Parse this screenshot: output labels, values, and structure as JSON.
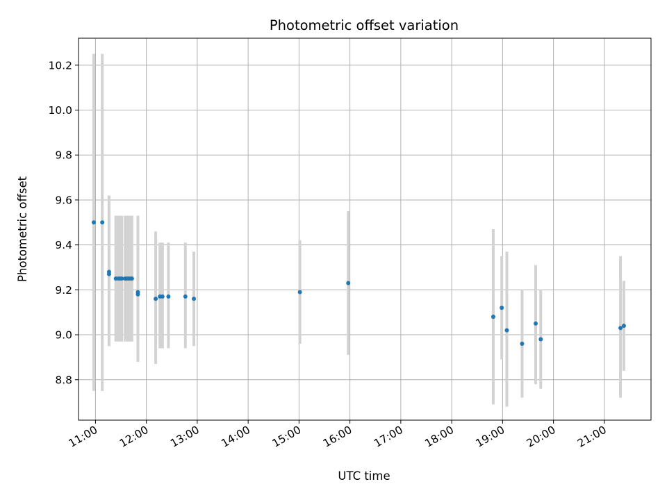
{
  "chart_data": {
    "type": "scatter",
    "title": "Photometric offset variation",
    "xlabel": "UTC time",
    "ylabel": "Photometric offset",
    "x_axis_type": "time",
    "x_range": [
      "10:40",
      "21:55"
    ],
    "ylim": [
      8.62,
      10.32
    ],
    "x_ticks": [
      "11:00",
      "12:00",
      "13:00",
      "14:00",
      "15:00",
      "16:00",
      "17:00",
      "18:00",
      "19:00",
      "20:00",
      "21:00"
    ],
    "y_ticks": [
      8.8,
      9.0,
      9.2,
      9.4,
      9.6,
      9.8,
      10.0,
      10.2
    ],
    "y_tick_labels": [
      "8.8",
      "9.0",
      "9.2",
      "9.4",
      "9.6",
      "9.8",
      "10.0",
      "10.2"
    ],
    "grid": true,
    "legend": "none",
    "point_color": "#1f77b4",
    "errorbar_color": "#d3d3d3",
    "points": [
      {
        "t": "10:58",
        "y": 9.5,
        "lo": 8.75,
        "hi": 10.25
      },
      {
        "t": "11:08",
        "y": 9.5,
        "lo": 8.75,
        "hi": 10.25
      },
      {
        "t": "11:16",
        "y": 9.28,
        "lo": 8.95,
        "hi": 9.62
      },
      {
        "t": "11:16",
        "y": 9.27,
        "lo": 8.95,
        "hi": 9.62
      },
      {
        "t": "11:24",
        "y": 9.25,
        "lo": 8.97,
        "hi": 9.53
      },
      {
        "t": "11:27",
        "y": 9.25,
        "lo": 8.97,
        "hi": 9.53
      },
      {
        "t": "11:29",
        "y": 9.25,
        "lo": 8.97,
        "hi": 9.53
      },
      {
        "t": "11:31",
        "y": 9.25,
        "lo": 8.97,
        "hi": 9.53
      },
      {
        "t": "11:35",
        "y": 9.25,
        "lo": 8.97,
        "hi": 9.53
      },
      {
        "t": "11:37",
        "y": 9.25,
        "lo": 8.97,
        "hi": 9.53
      },
      {
        "t": "11:39",
        "y": 9.25,
        "lo": 8.97,
        "hi": 9.53
      },
      {
        "t": "11:41",
        "y": 9.25,
        "lo": 8.97,
        "hi": 9.53
      },
      {
        "t": "11:43",
        "y": 9.25,
        "lo": 8.97,
        "hi": 9.53
      },
      {
        "t": "11:50",
        "y": 9.19,
        "lo": 8.88,
        "hi": 9.53
      },
      {
        "t": "11:50",
        "y": 9.18,
        "lo": 8.88,
        "hi": 9.53
      },
      {
        "t": "12:11",
        "y": 9.16,
        "lo": 8.87,
        "hi": 9.46
      },
      {
        "t": "12:16",
        "y": 9.17,
        "lo": 8.94,
        "hi": 9.41
      },
      {
        "t": "12:19",
        "y": 9.17,
        "lo": 8.94,
        "hi": 9.41
      },
      {
        "t": "12:26",
        "y": 9.17,
        "lo": 8.94,
        "hi": 9.41
      },
      {
        "t": "12:46",
        "y": 9.17,
        "lo": 8.94,
        "hi": 9.41
      },
      {
        "t": "12:56",
        "y": 9.16,
        "lo": 8.95,
        "hi": 9.37
      },
      {
        "t": "15:01",
        "y": 9.19,
        "lo": 8.96,
        "hi": 9.42
      },
      {
        "t": "15:58",
        "y": 9.23,
        "lo": 8.91,
        "hi": 9.55
      },
      {
        "t": "18:49",
        "y": 9.08,
        "lo": 8.69,
        "hi": 9.47
      },
      {
        "t": "18:59",
        "y": 9.12,
        "lo": 8.89,
        "hi": 9.35
      },
      {
        "t": "19:05",
        "y": 9.02,
        "lo": 8.68,
        "hi": 9.37
      },
      {
        "t": "19:23",
        "y": 8.96,
        "lo": 8.72,
        "hi": 9.2
      },
      {
        "t": "19:39",
        "y": 9.05,
        "lo": 8.78,
        "hi": 9.31
      },
      {
        "t": "19:45",
        "y": 8.98,
        "lo": 8.76,
        "hi": 9.2
      },
      {
        "t": "21:19",
        "y": 9.03,
        "lo": 8.72,
        "hi": 9.35
      },
      {
        "t": "21:23",
        "y": 9.04,
        "lo": 8.84,
        "hi": 9.24
      }
    ]
  }
}
